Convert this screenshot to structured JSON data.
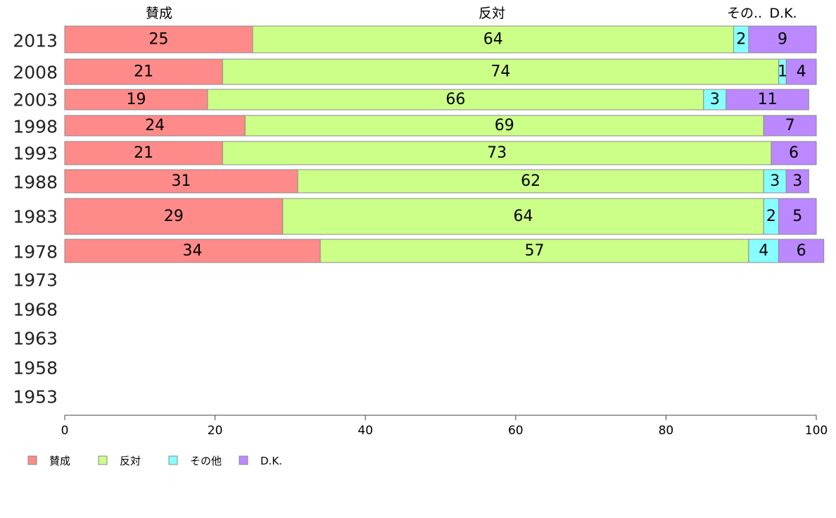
{
  "chart_data": {
    "type": "bar",
    "orientation": "horizontal",
    "stacked": true,
    "xlim": [
      0,
      100
    ],
    "x_ticks": [
      "0",
      "20",
      "40",
      "60",
      "80",
      "100"
    ],
    "categories": [
      "2013",
      "2008",
      "2003",
      "1998",
      "1993",
      "1988",
      "1983",
      "1978",
      "1973",
      "1968",
      "1963",
      "1958",
      "1953"
    ],
    "header_labels": [
      "賛成",
      "反対",
      "その..",
      "D.K."
    ],
    "series": [
      {
        "name": "賛成",
        "color": "#ff8a8a",
        "values": [
          25,
          21,
          19,
          24,
          21,
          31,
          29,
          34,
          null,
          null,
          null,
          null,
          null
        ]
      },
      {
        "name": "反対",
        "color": "#ccff88",
        "values": [
          64,
          74,
          66,
          69,
          73,
          62,
          64,
          57,
          null,
          null,
          null,
          null,
          null
        ]
      },
      {
        "name": "その他",
        "color": "#88ffff",
        "values": [
          2,
          1,
          3,
          0,
          0,
          3,
          2,
          4,
          null,
          null,
          null,
          null,
          null
        ]
      },
      {
        "name": "D.K.",
        "color": "#bb88ff",
        "values": [
          9,
          4,
          11,
          7,
          6,
          3,
          5,
          6,
          null,
          null,
          null,
          null,
          null
        ]
      }
    ],
    "legend_position": "bottom-left",
    "grid": false
  }
}
